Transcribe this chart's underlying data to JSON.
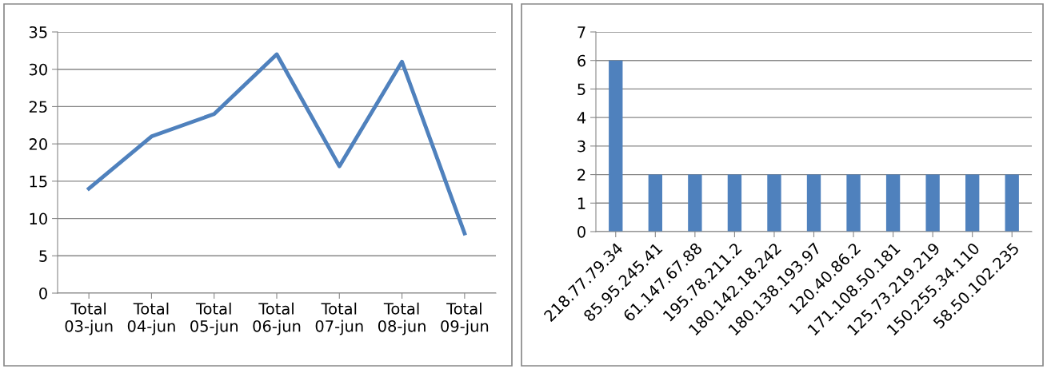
{
  "chart_data": [
    {
      "type": "line",
      "categories": [
        "Total\n03-jun",
        "Total\n04-jun",
        "Total\n05-jun",
        "Total\n06-jun",
        "Total\n07-jun",
        "Total\n08-jun",
        "Total\n09-jun"
      ],
      "series": [
        {
          "color": "#4f81bd",
          "values": [
            14,
            21,
            24,
            32,
            17,
            31,
            8
          ]
        }
      ],
      "ylim": [
        0,
        35
      ],
      "yticks": [
        0,
        5,
        10,
        15,
        20,
        25,
        30,
        35
      ],
      "grid": "y",
      "marker": "none",
      "line_style": "solid"
    },
    {
      "type": "bar",
      "categories": [
        "218.77.79.34",
        "85.95.245.41",
        "61.147.67.88",
        "195.78.211.2",
        "180.142.18.242",
        "180.138.193.97",
        "120.40.86.2",
        "171.108.50.181",
        "125.73.219.219",
        "150.255.34.110",
        "58.50.102.235"
      ],
      "series": [
        {
          "color": "#4f81bd",
          "values": [
            6,
            2,
            2,
            2,
            2,
            2,
            2,
            2,
            2,
            2,
            2
          ]
        }
      ],
      "ylim": [
        0,
        7
      ],
      "yticks": [
        0,
        1,
        2,
        3,
        4,
        5,
        6,
        7
      ],
      "grid": "y"
    }
  ]
}
